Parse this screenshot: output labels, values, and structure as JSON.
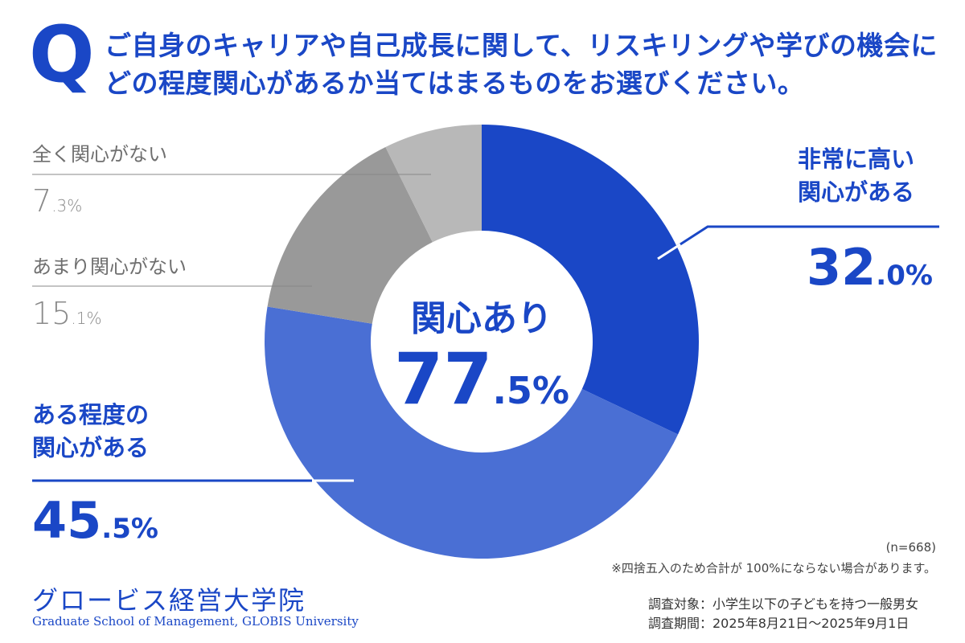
{
  "header": {
    "q_mark": "Q",
    "question": "ご自身のキャリアや自己成長に関して、リスキリングや学びの機会にどの程度関心があるか当てはまるものをお選びください。"
  },
  "chart_data": {
    "type": "pie",
    "donut": true,
    "start_angle_deg": 0,
    "direction": "clockwise",
    "slices": [
      {
        "label": "非常に高い関心がある",
        "value": 32.0,
        "color": "#1a47c6",
        "line1": "非常に高い",
        "line2": "関心がある",
        "int": "32",
        "dec": ".0%"
      },
      {
        "label": "ある程度の関心がある",
        "value": 45.5,
        "color": "#4a6fd4",
        "line1": "ある程度の",
        "line2": "関心がある",
        "int": "45",
        "dec": ".5%"
      },
      {
        "label": "あまり関心がない",
        "value": 15.1,
        "color": "#999999",
        "int": "15",
        "dec": ".1%"
      },
      {
        "label": "全く関心がない",
        "value": 7.3,
        "color": "#b8b8b8",
        "int": "7",
        "dec": ".3%"
      }
    ],
    "center": {
      "label": "関心あり",
      "int": "77",
      "dec": ".5%"
    }
  },
  "notes": {
    "n": "(n=668)",
    "rounding": "※四捨五入のため合計が 100%にならない場合があります。"
  },
  "survey": {
    "target": "調査対象：小学生以下の子どもを持つ一般男女",
    "period": "調査期間：2025年8月21日〜2025年9月1日"
  },
  "logo": {
    "jp": "グロービス経営大学院",
    "en": "Graduate School of Management, GLOBIS University"
  }
}
